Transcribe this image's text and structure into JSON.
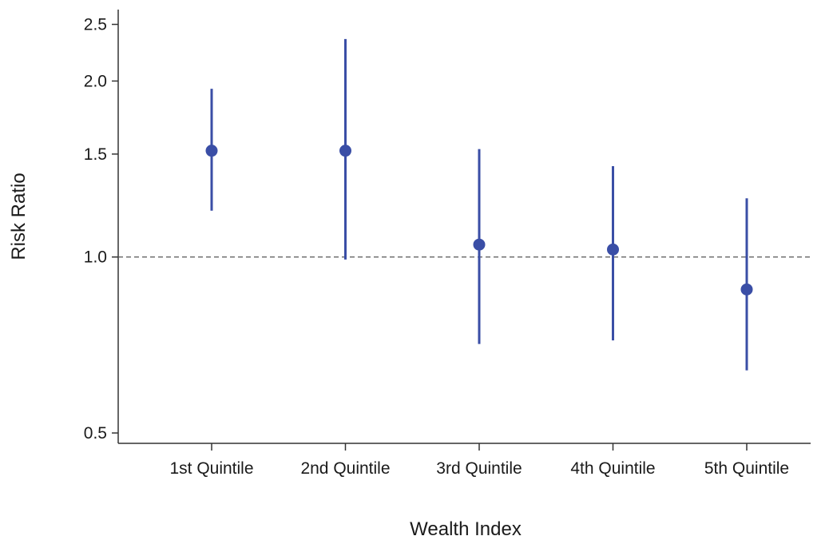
{
  "chart_data": {
    "type": "scatter",
    "subtype": "point-estimate-with-confidence-intervals",
    "title": "",
    "xlabel": "Wealth Index",
    "ylabel": "Risk Ratio",
    "yscale": "log",
    "ylim": [
      0.48,
      2.65
    ],
    "yticks": [
      0.5,
      1.0,
      1.5,
      2.0,
      2.5
    ],
    "ytick_labels": [
      "0.5",
      "1.0",
      "1.5",
      "2.0",
      "2.5"
    ],
    "reference_line": {
      "y": 1.0,
      "style": "dashed"
    },
    "categories": [
      "1st Quintile",
      "2nd Quintile",
      "3rd Quintile",
      "4th Quintile",
      "5th Quintile"
    ],
    "estimates": [
      1.52,
      1.52,
      1.05,
      1.03,
      0.88
    ],
    "ci_lower": [
      1.2,
      0.99,
      0.71,
      0.72,
      0.64
    ],
    "ci_upper": [
      1.94,
      2.36,
      1.53,
      1.43,
      1.26
    ],
    "grid": false,
    "legend": "none",
    "colors": {
      "series": "#3a4ea6",
      "axis": "#333333",
      "reference": "#555555"
    }
  }
}
